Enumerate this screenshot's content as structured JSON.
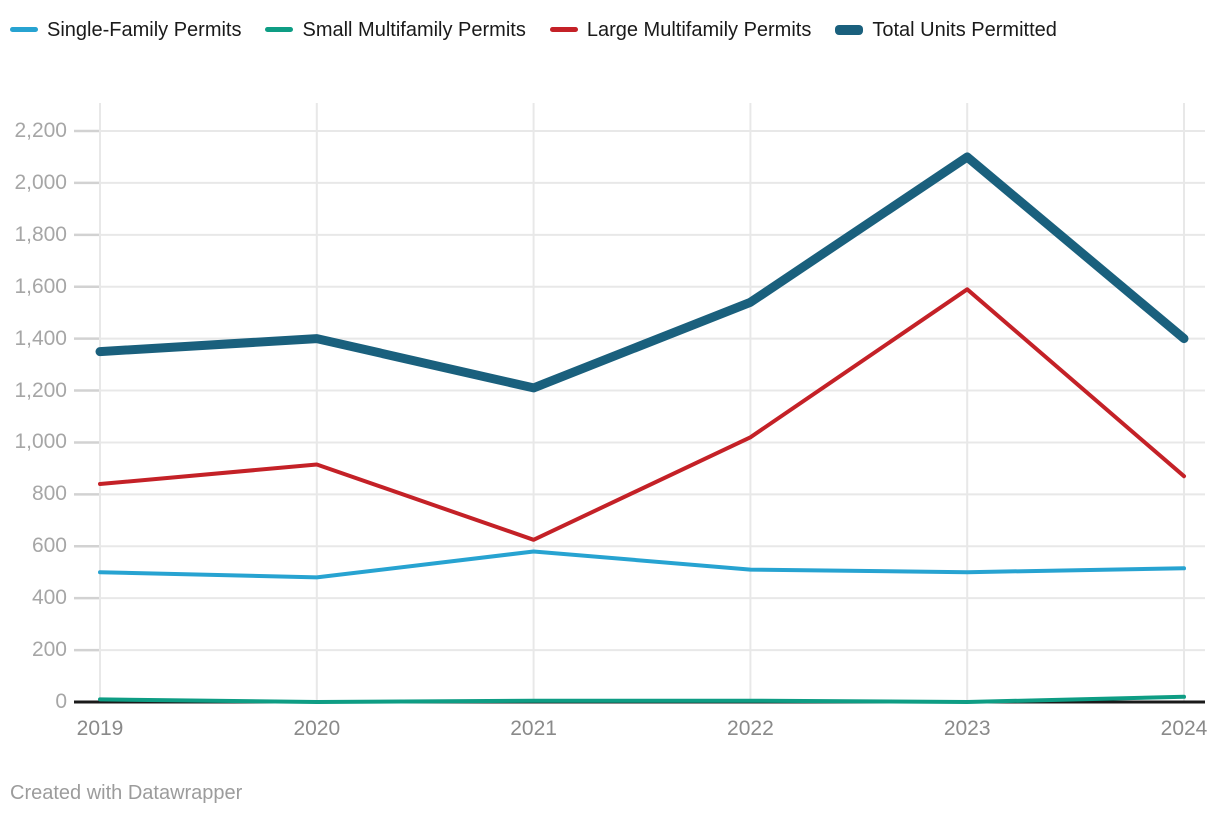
{
  "chart_data": {
    "type": "line",
    "categories": [
      "2019",
      "2020",
      "2021",
      "2022",
      "2023",
      "2024"
    ],
    "series": [
      {
        "name": "Single-Family Permits",
        "color": "#27a3d1",
        "stroke_width": 4,
        "values": [
          500,
          480,
          580,
          510,
          500,
          515
        ]
      },
      {
        "name": "Small Multifamily Permits",
        "color": "#0e9d84",
        "stroke_width": 4,
        "values": [
          10,
          0,
          5,
          5,
          0,
          20
        ]
      },
      {
        "name": "Large Multifamily Permits",
        "color": "#c42127",
        "stroke_width": 4,
        "values": [
          840,
          915,
          625,
          1020,
          1590,
          870
        ]
      },
      {
        "name": "Total Units Permitted",
        "color": "#1a607d",
        "stroke_width": 9,
        "values": [
          1350,
          1400,
          1210,
          1540,
          2100,
          1400
        ]
      }
    ],
    "y_ticks": {
      "values": [
        0,
        200,
        400,
        600,
        800,
        1000,
        1200,
        1400,
        1600,
        1800,
        2000,
        2200
      ],
      "labels": [
        "0",
        "200",
        "400",
        "600",
        "800",
        "1,000",
        "1,200",
        "1,400",
        "1,600",
        "1,800",
        "2,000",
        "2,200"
      ]
    },
    "ylim": [
      0,
      2200
    ],
    "grid": "on",
    "legend_position": "top",
    "title": "",
    "xlabel": "",
    "ylabel": ""
  },
  "colors": {
    "gridline": "#e8e8e8",
    "tick": "#d2d2d2",
    "axis_line": "#1a1a1a",
    "y_label": "#a6a6a6",
    "x_label": "#8a8a8a",
    "legend_text": "#1a1a1a",
    "footer_text": "#9c9c9c"
  },
  "footer": {
    "credit": "Created with Datawrapper"
  }
}
